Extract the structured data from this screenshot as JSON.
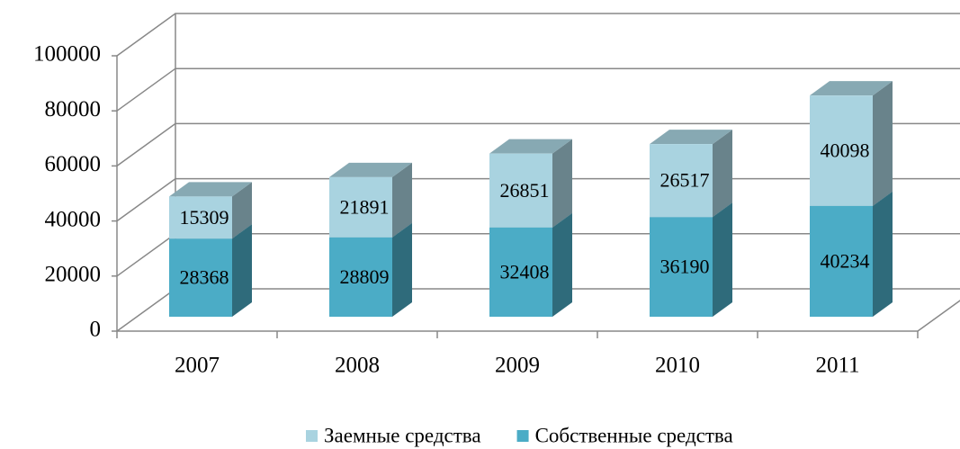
{
  "chart_data": {
    "type": "bar3d_stacked",
    "categories": [
      "2007",
      "2008",
      "2009",
      "2010",
      "2011"
    ],
    "series": [
      {
        "name": "Собственные средства",
        "color": "#4bacc6",
        "values": [
          28368,
          28809,
          32408,
          36190,
          40234
        ]
      },
      {
        "name": "Заемные средства",
        "color": "#a9d3e0",
        "values": [
          15309,
          21891,
          26851,
          26517,
          40098
        ]
      }
    ],
    "ylim": [
      0,
      100000
    ],
    "yticks": [
      0,
      20000,
      40000,
      60000,
      80000,
      100000
    ],
    "grid": true,
    "legend": "bottom"
  }
}
